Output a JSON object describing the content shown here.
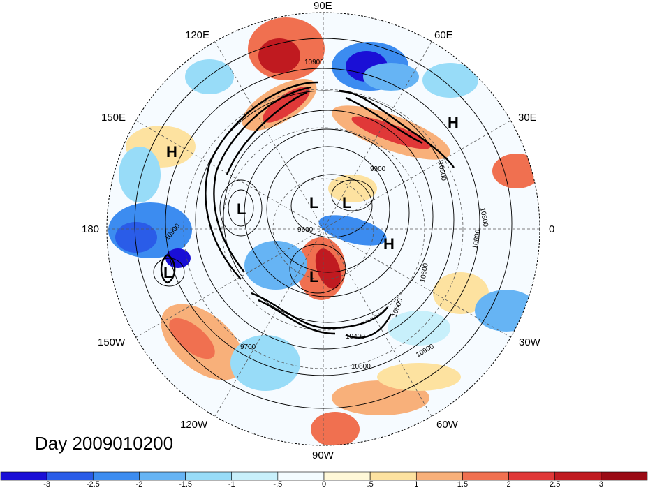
{
  "lon_labels": {
    "n90e": "90E",
    "n120e": "120E",
    "n60e": "60E",
    "n150e": "150E",
    "n30e": "30E",
    "w180": "180",
    "e0": "0",
    "n150w": "150W",
    "n30w": "30W",
    "n120w": "120W",
    "n60w": "60W",
    "n90w": "90W"
  },
  "day_label": "Day 2009010200",
  "systems": {
    "h1": "H",
    "h2": "H",
    "h3": "H",
    "l1": "L",
    "l2": "L",
    "l3": "L",
    "l4": "L",
    "l5": "L"
  },
  "contour_labels": {
    "c1": "10900",
    "c2": "10900",
    "c3": "10900",
    "c4": "10800",
    "c5": "10800",
    "c6": "10600",
    "c7": "10500",
    "c8": "10400",
    "c9": "9900",
    "c10": "9600",
    "c11": "9700",
    "c12": "10600",
    "c13": "10800"
  },
  "colorbar": {
    "colors": [
      "#1a0fd6",
      "#2a5ce8",
      "#3c8cf0",
      "#66b4f4",
      "#98dcf8",
      "#c8f0fb",
      "#f4fcff",
      "#fff8d8",
      "#fde2a0",
      "#f8b07a",
      "#f07050",
      "#e03838",
      "#c01a20",
      "#9a0a14"
    ],
    "tick_labels": [
      "-3",
      "-2.5",
      "-2",
      "-1.5",
      "-1",
      "-.5",
      "0",
      ".5",
      "1",
      "1.5",
      "2",
      "2.5",
      "3"
    ]
  },
  "colors": {
    "frame": "#000000",
    "grid": "#555555",
    "ocean_neutral": "#f6fbff"
  }
}
